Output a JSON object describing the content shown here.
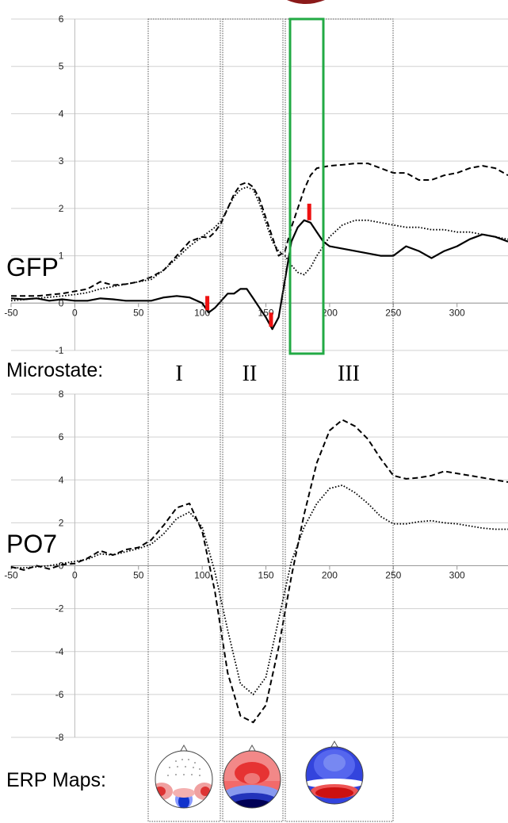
{
  "labels": {
    "gfp": "GFP",
    "po7": "PO7",
    "microstate": "Microstate:",
    "erp_maps": "ERP Maps:",
    "microstate_names": [
      "I",
      "II",
      "III"
    ]
  },
  "colors": {
    "marker": "#ee1111",
    "highlight": "#22aa44",
    "top_blob": "#8b1a1a"
  },
  "chart_data": [
    {
      "type": "line",
      "title": "GFP",
      "xlim": [
        -50,
        340
      ],
      "ylim": [
        -1,
        6
      ],
      "x_ticks": [
        -50,
        0,
        50,
        100,
        150,
        200,
        250,
        300
      ],
      "y_ticks": [
        -1,
        0,
        1,
        2,
        3,
        4,
        5,
        6
      ],
      "grid": "horizontal",
      "series": [
        {
          "style": "solid",
          "x": [
            -50,
            -40,
            -30,
            -20,
            -10,
            0,
            10,
            20,
            30,
            40,
            50,
            60,
            70,
            80,
            90,
            100,
            105,
            110,
            115,
            120,
            125,
            130,
            135,
            140,
            145,
            150,
            155,
            160,
            165,
            170,
            175,
            180,
            185,
            190,
            195,
            200,
            210,
            220,
            230,
            240,
            250,
            260,
            270,
            280,
            290,
            300,
            310,
            320,
            330,
            340
          ],
          "y": [
            0.1,
            0.08,
            0.1,
            0.05,
            0.08,
            0.05,
            0.05,
            0.1,
            0.08,
            0.05,
            0.05,
            0.05,
            0.12,
            0.15,
            0.12,
            0.0,
            -0.2,
            -0.1,
            0.05,
            0.2,
            0.2,
            0.3,
            0.3,
            0.1,
            -0.1,
            -0.3,
            -0.55,
            -0.3,
            0.5,
            1.3,
            1.6,
            1.75,
            1.7,
            1.5,
            1.3,
            1.2,
            1.15,
            1.1,
            1.05,
            1.0,
            1.0,
            1.2,
            1.1,
            0.95,
            1.1,
            1.2,
            1.35,
            1.45,
            1.4,
            1.3
          ]
        },
        {
          "style": "dashed",
          "x": [
            -50,
            -30,
            -10,
            0,
            10,
            20,
            30,
            40,
            50,
            60,
            70,
            80,
            90,
            100,
            105,
            110,
            115,
            120,
            125,
            130,
            135,
            140,
            145,
            150,
            155,
            160,
            165,
            170,
            175,
            180,
            185,
            190,
            200,
            210,
            220,
            230,
            240,
            250,
            260,
            270,
            280,
            290,
            300,
            310,
            320,
            330,
            340
          ],
          "y": [
            0.15,
            0.15,
            0.2,
            0.25,
            0.3,
            0.45,
            0.38,
            0.4,
            0.45,
            0.55,
            0.7,
            1.0,
            1.3,
            1.4,
            1.38,
            1.5,
            1.7,
            2.0,
            2.3,
            2.5,
            2.55,
            2.45,
            2.2,
            1.8,
            1.4,
            1.0,
            1.1,
            1.6,
            2.0,
            2.4,
            2.7,
            2.85,
            2.9,
            2.92,
            2.95,
            2.95,
            2.85,
            2.75,
            2.75,
            2.6,
            2.6,
            2.7,
            2.75,
            2.85,
            2.9,
            2.85,
            2.7
          ]
        },
        {
          "style": "dotted",
          "x": [
            -50,
            -30,
            -10,
            0,
            10,
            20,
            30,
            40,
            50,
            60,
            70,
            80,
            90,
            100,
            105,
            110,
            115,
            120,
            125,
            130,
            135,
            140,
            145,
            150,
            155,
            160,
            165,
            170,
            175,
            180,
            185,
            190,
            200,
            210,
            220,
            230,
            240,
            250,
            260,
            270,
            280,
            290,
            300,
            310,
            320,
            330,
            340
          ],
          "y": [
            0.05,
            0.1,
            0.15,
            0.18,
            0.22,
            0.3,
            0.35,
            0.4,
            0.45,
            0.5,
            0.7,
            0.95,
            1.2,
            1.4,
            1.5,
            1.6,
            1.75,
            2.0,
            2.25,
            2.4,
            2.45,
            2.4,
            2.1,
            1.7,
            1.3,
            1.1,
            1.0,
            0.8,
            0.65,
            0.6,
            0.75,
            1.0,
            1.4,
            1.65,
            1.75,
            1.75,
            1.7,
            1.65,
            1.6,
            1.6,
            1.55,
            1.55,
            1.5,
            1.5,
            1.45,
            1.4,
            1.35
          ]
        }
      ],
      "markers": [
        {
          "x": 104,
          "y_from": -0.15,
          "y_to": 0.15
        },
        {
          "x": 154,
          "y_from": -0.5,
          "y_to": -0.2
        },
        {
          "x": 184,
          "y_from": 1.75,
          "y_to": 2.1
        }
      ]
    },
    {
      "type": "line",
      "title": "PO7",
      "xlim": [
        -50,
        340
      ],
      "ylim": [
        -8,
        8
      ],
      "x_ticks": [
        -50,
        0,
        50,
        100,
        150,
        200,
        250,
        300
      ],
      "y_ticks": [
        -8,
        -6,
        -4,
        -2,
        0,
        2,
        4,
        6,
        8
      ],
      "grid": "horizontal",
      "series": [
        {
          "style": "dashed",
          "x": [
            -50,
            -40,
            -30,
            -20,
            -10,
            0,
            10,
            20,
            30,
            40,
            50,
            60,
            70,
            80,
            90,
            100,
            110,
            120,
            130,
            140,
            150,
            160,
            170,
            180,
            190,
            200,
            210,
            220,
            230,
            240,
            250,
            260,
            270,
            280,
            290,
            300,
            310,
            320,
            330,
            340
          ],
          "y": [
            -0.05,
            -0.2,
            0.0,
            -0.15,
            0.05,
            0.1,
            0.35,
            0.7,
            0.5,
            0.75,
            0.85,
            1.2,
            1.9,
            2.7,
            2.9,
            1.6,
            -1.2,
            -5.0,
            -7.0,
            -7.3,
            -6.5,
            -3.8,
            -0.5,
            2.4,
            4.8,
            6.3,
            6.8,
            6.5,
            5.9,
            5.0,
            4.2,
            4.05,
            4.1,
            4.2,
            4.4,
            4.3,
            4.2,
            4.1,
            4.0,
            3.9
          ]
        },
        {
          "style": "dotted",
          "x": [
            -50,
            -40,
            -30,
            -20,
            -10,
            0,
            10,
            20,
            30,
            40,
            50,
            60,
            70,
            80,
            90,
            100,
            110,
            120,
            130,
            140,
            150,
            160,
            170,
            180,
            190,
            200,
            210,
            220,
            230,
            240,
            250,
            260,
            270,
            280,
            290,
            300,
            310,
            320,
            330,
            340
          ],
          "y": [
            -0.1,
            -0.1,
            -0.05,
            0.0,
            0.1,
            0.2,
            0.3,
            0.55,
            0.5,
            0.65,
            0.8,
            1.0,
            1.5,
            2.2,
            2.5,
            1.8,
            -0.3,
            -3.0,
            -5.5,
            -6.0,
            -5.2,
            -2.5,
            0.2,
            1.8,
            2.9,
            3.6,
            3.75,
            3.4,
            2.9,
            2.3,
            1.95,
            1.95,
            2.05,
            2.1,
            2.0,
            1.95,
            1.85,
            1.75,
            1.7,
            1.7
          ]
        }
      ]
    }
  ]
}
